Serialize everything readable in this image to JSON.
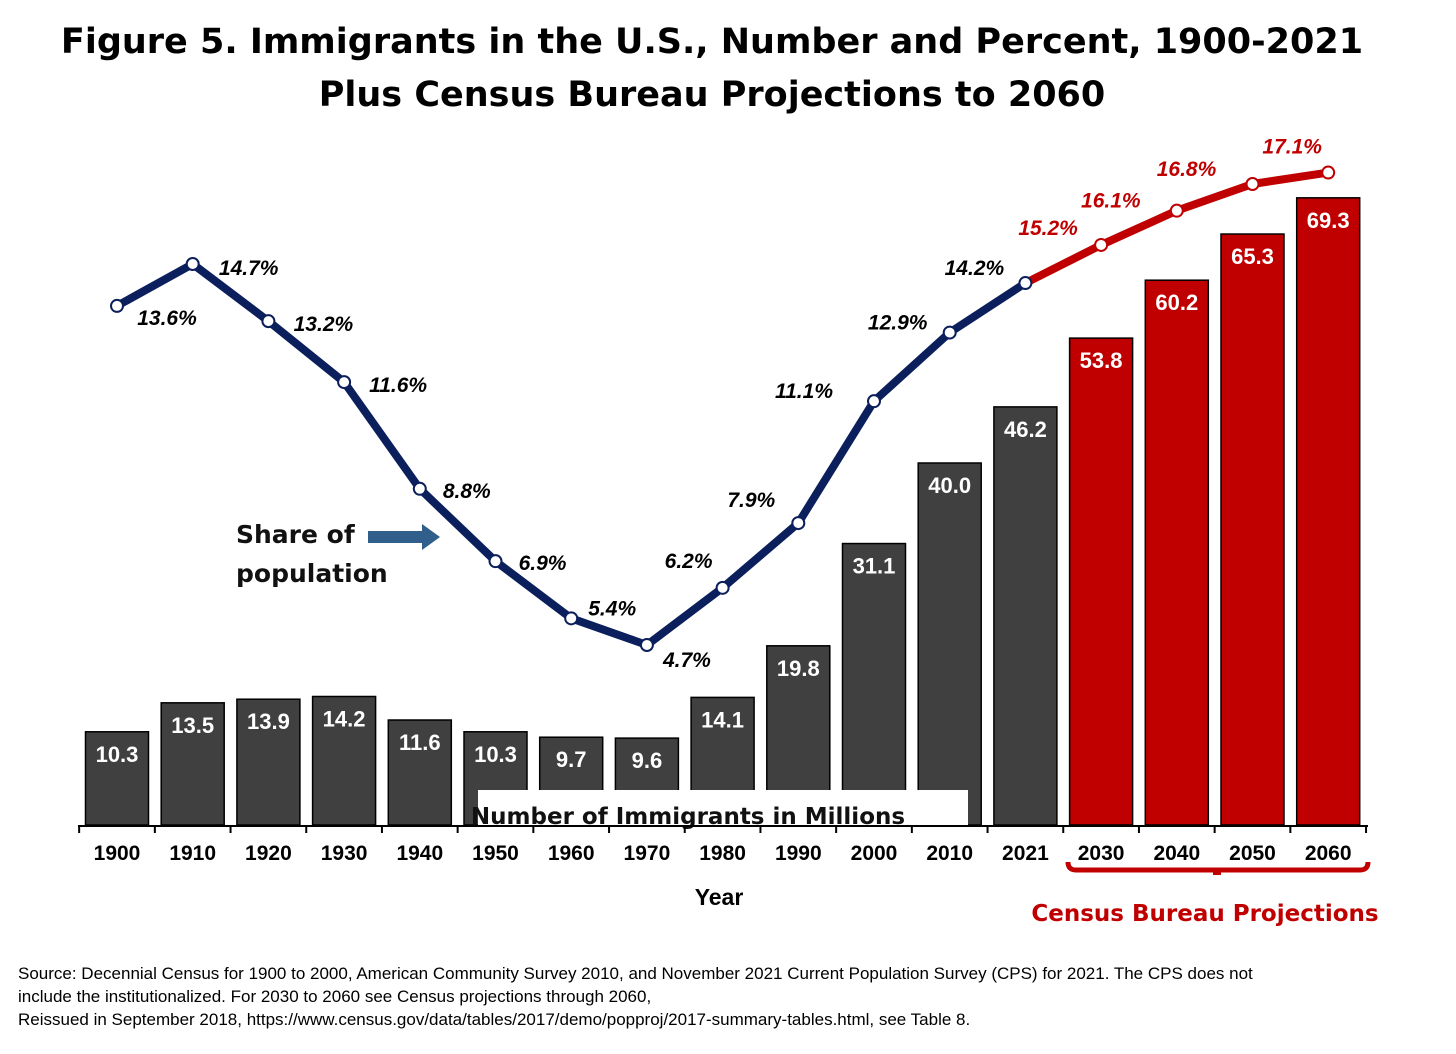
{
  "chart_data": {
    "type": "bar+line",
    "title": "Figure 5. Immigrants in the U.S., Number and Percent, 1900-2021",
    "subtitle": "Plus Census Bureau Projections to 2060",
    "xlabel": "Year",
    "categories": [
      "1900",
      "1910",
      "1920",
      "1930",
      "1940",
      "1950",
      "1960",
      "1970",
      "1980",
      "1990",
      "2000",
      "2010",
      "2021",
      "2030",
      "2040",
      "2050",
      "2060"
    ],
    "bars": {
      "label": "Number of Immigrants in Millions",
      "values": [
        10.3,
        13.5,
        13.9,
        14.2,
        11.6,
        10.3,
        9.7,
        9.6,
        14.1,
        19.8,
        31.1,
        40.0,
        46.2,
        53.8,
        60.2,
        65.3,
        69.3
      ],
      "labels": [
        "10.3",
        "13.5",
        "13.9",
        "14.2",
        "11.6",
        "10.3",
        "9.7",
        "9.6",
        "14.1",
        "19.8",
        "31.1",
        "40.0",
        "46.2",
        "53.8",
        "60.2",
        "65.3",
        "69.3"
      ]
    },
    "line": {
      "label_lines": [
        "Share of",
        "population"
      ],
      "values": [
        13.6,
        14.7,
        13.2,
        11.6,
        8.8,
        6.9,
        5.4,
        4.7,
        6.2,
        7.9,
        11.1,
        12.9,
        14.2,
        15.2,
        16.1,
        16.8,
        17.1
      ],
      "labels": [
        "13.6%",
        "14.7%",
        "13.2%",
        "11.6%",
        "8.8%",
        "6.9%",
        "5.4%",
        "4.7%",
        "6.2%",
        "7.9%",
        "11.1%",
        "12.9%",
        "14.2%",
        "15.2%",
        "16.1%",
        "16.8%",
        "17.1%"
      ]
    },
    "projection_label": "Census Bureau Projections",
    "projection_start": "2030",
    "ylim_bars": [
      0,
      70
    ],
    "grid": false,
    "legend": "none",
    "colors": {
      "bar_actual": "#404040",
      "bar_projected": "#c00000",
      "line_actual": "#0b1f5c",
      "line_projected": "#c00000",
      "arrow": "#2f5f8a"
    }
  },
  "source_lines": [
    "Source: Decennial Census for 1900 to 2000, American Community Survey 2010, and November 2021 Current Population Survey (CPS) for 2021. The CPS does not",
    "include the institutionalized. For 2030 to 2060 see Census projections through 2060,",
    "Reissued in September 2018, https://www.census.gov/data/tables/2017/demo/popproj/2017-summary-tables.html, see Table 8."
  ]
}
